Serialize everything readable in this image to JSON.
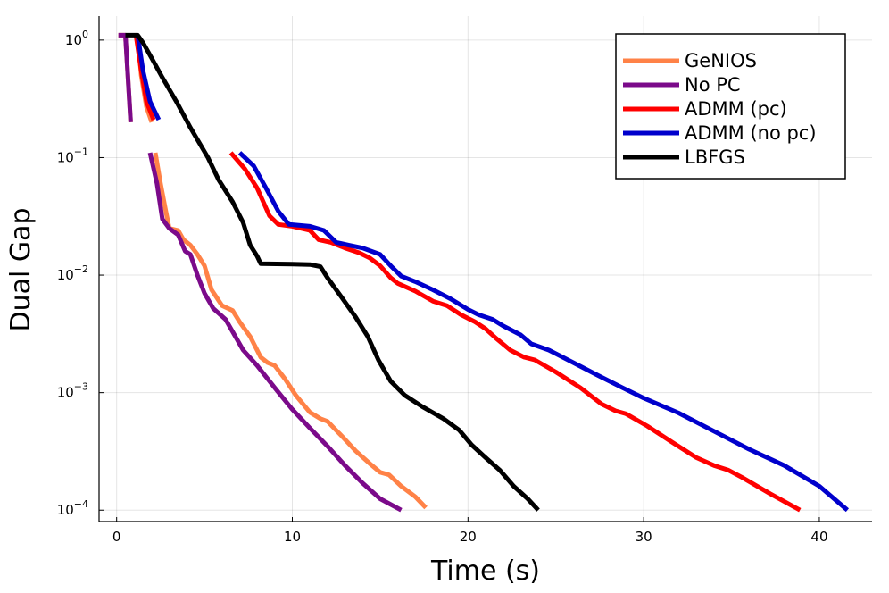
{
  "chart_data": {
    "type": "line",
    "title": "",
    "xlabel": "Time (s)",
    "ylabel": "Dual Gap",
    "yscale": "log",
    "xlim": [
      -1,
      43
    ],
    "ylim": [
      8e-05,
      1.6
    ],
    "x_ticks": [
      {
        "value": 0,
        "label": "0"
      },
      {
        "value": 10,
        "label": "10"
      },
      {
        "value": 20,
        "label": "20"
      },
      {
        "value": 30,
        "label": "30"
      },
      {
        "value": 40,
        "label": "40"
      }
    ],
    "y_ticks": [
      {
        "value": 1,
        "base": "10",
        "exp": "0"
      },
      {
        "value": 0.1,
        "base": "10",
        "exp": "−1"
      },
      {
        "value": 0.01,
        "base": "10",
        "exp": "−2"
      },
      {
        "value": 0.001,
        "base": "10",
        "exp": "−3"
      },
      {
        "value": 0.0001,
        "base": "10",
        "exp": "−4"
      }
    ],
    "grid": true,
    "legend_position": "top-right",
    "series": [
      {
        "name": "GeNIOS",
        "color": "#ff8247",
        "segments": [
          [
            [
              0.1,
              1.1
            ],
            [
              0.5,
              1.1
            ],
            [
              0.8,
              0.2
            ]
          ],
          [
            [
              1.2,
              1.1
            ],
            [
              1.4,
              0.5
            ],
            [
              1.7,
              0.27
            ],
            [
              2.0,
              0.2
            ]
          ],
          [
            [
              2.2,
              0.11
            ],
            [
              2.5,
              0.06
            ],
            [
              2.8,
              0.035
            ],
            [
              3.0,
              0.025
            ],
            [
              3.5,
              0.024
            ],
            [
              3.8,
              0.02
            ],
            [
              4.2,
              0.018
            ],
            [
              4.6,
              0.015
            ],
            [
              5.0,
              0.012
            ],
            [
              5.4,
              0.0075
            ],
            [
              6.0,
              0.0055
            ],
            [
              6.6,
              0.005
            ],
            [
              7.0,
              0.004
            ],
            [
              7.6,
              0.003
            ],
            [
              8.2,
              0.002
            ],
            [
              8.6,
              0.0018
            ],
            [
              9.0,
              0.0017
            ],
            [
              9.6,
              0.0013
            ],
            [
              10.2,
              0.00095
            ],
            [
              11.0,
              0.00068
            ],
            [
              11.6,
              0.0006
            ],
            [
              12.0,
              0.00057
            ],
            [
              12.8,
              0.00043
            ],
            [
              13.6,
              0.00032
            ],
            [
              14.4,
              0.00025
            ],
            [
              15.0,
              0.00021
            ],
            [
              15.5,
              0.0002
            ],
            [
              16.2,
              0.00016
            ],
            [
              17.0,
              0.00013
            ],
            [
              17.6,
              0.000105
            ]
          ]
        ]
      },
      {
        "name": "No PC",
        "color": "#7b0a8a",
        "segments": [
          [
            [
              0.1,
              1.1
            ],
            [
              0.5,
              1.1
            ],
            [
              0.8,
              0.2
            ]
          ],
          [
            [
              1.9,
              0.11
            ],
            [
              2.3,
              0.06
            ],
            [
              2.6,
              0.03
            ],
            [
              3.0,
              0.025
            ],
            [
              3.5,
              0.022
            ],
            [
              3.9,
              0.016
            ],
            [
              4.2,
              0.015
            ],
            [
              4.6,
              0.01
            ],
            [
              5.0,
              0.007
            ],
            [
              5.5,
              0.0052
            ],
            [
              6.2,
              0.0042
            ],
            [
              6.6,
              0.0033
            ],
            [
              7.2,
              0.0023
            ],
            [
              8.0,
              0.0017
            ],
            [
              9.0,
              0.0011
            ],
            [
              10.0,
              0.00072
            ],
            [
              11.0,
              0.0005
            ],
            [
              12.0,
              0.00035
            ],
            [
              13.0,
              0.00024
            ],
            [
              14.0,
              0.00017
            ],
            [
              15.0,
              0.000125
            ],
            [
              16.2,
              0.0001
            ]
          ]
        ]
      },
      {
        "name": "ADMM (pc)",
        "color": "#ff0000",
        "segments": [
          [
            [
              1.1,
              1.1
            ],
            [
              1.4,
              0.55
            ],
            [
              1.7,
              0.3
            ],
            [
              2.1,
              0.21
            ]
          ],
          [
            [
              6.5,
              0.11
            ],
            [
              7.3,
              0.08
            ],
            [
              8.0,
              0.055
            ],
            [
              8.7,
              0.032
            ],
            [
              9.2,
              0.027
            ],
            [
              10.0,
              0.026
            ],
            [
              11.0,
              0.024
            ],
            [
              11.5,
              0.02
            ],
            [
              12.2,
              0.019
            ],
            [
              13.0,
              0.017
            ],
            [
              13.8,
              0.0155
            ],
            [
              14.4,
              0.014
            ],
            [
              15.0,
              0.012
            ],
            [
              15.6,
              0.0095
            ],
            [
              16.0,
              0.0085
            ],
            [
              17.0,
              0.0073
            ],
            [
              18.0,
              0.006
            ],
            [
              18.8,
              0.0055
            ],
            [
              19.6,
              0.0046
            ],
            [
              20.4,
              0.004
            ],
            [
              21.0,
              0.0035
            ],
            [
              21.6,
              0.0029
            ],
            [
              22.4,
              0.0023
            ],
            [
              23.2,
              0.002
            ],
            [
              23.8,
              0.0019
            ],
            [
              25.0,
              0.0015
            ],
            [
              26.4,
              0.0011
            ],
            [
              27.6,
              0.0008
            ],
            [
              28.4,
              0.0007
            ],
            [
              29.0,
              0.00066
            ],
            [
              30.2,
              0.00052
            ],
            [
              31.6,
              0.00038
            ],
            [
              33.0,
              0.00028
            ],
            [
              34.0,
              0.00024
            ],
            [
              34.8,
              0.00022
            ],
            [
              35.6,
              0.00019
            ],
            [
              37.2,
              0.000138
            ],
            [
              38.9,
              0.0001
            ]
          ]
        ]
      },
      {
        "name": "ADMM (no pc)",
        "color": "#0000cc",
        "segments": [
          [
            [
              1.2,
              1.1
            ],
            [
              1.5,
              0.55
            ],
            [
              1.9,
              0.3
            ],
            [
              2.4,
              0.21
            ]
          ],
          [
            [
              7.0,
              0.11
            ],
            [
              7.8,
              0.085
            ],
            [
              8.5,
              0.055
            ],
            [
              9.2,
              0.035
            ],
            [
              9.8,
              0.027
            ],
            [
              11.0,
              0.026
            ],
            [
              11.8,
              0.024
            ],
            [
              12.5,
              0.019
            ],
            [
              13.2,
              0.018
            ],
            [
              14.0,
              0.017
            ],
            [
              15.0,
              0.015
            ],
            [
              15.6,
              0.012
            ],
            [
              16.2,
              0.0098
            ],
            [
              17.0,
              0.0088
            ],
            [
              18.0,
              0.0075
            ],
            [
              19.0,
              0.0063
            ],
            [
              20.0,
              0.0051
            ],
            [
              20.6,
              0.0046
            ],
            [
              21.4,
              0.0042
            ],
            [
              22.0,
              0.0037
            ],
            [
              23.0,
              0.0031
            ],
            [
              23.6,
              0.0026
            ],
            [
              24.6,
              0.0023
            ],
            [
              26.0,
              0.0018
            ],
            [
              27.4,
              0.0014
            ],
            [
              28.8,
              0.0011
            ],
            [
              30.0,
              0.0009
            ],
            [
              32.0,
              0.00067
            ],
            [
              34.0,
              0.00047
            ],
            [
              36.0,
              0.00033
            ],
            [
              38.0,
              0.00024
            ],
            [
              40.0,
              0.00016
            ],
            [
              41.6,
              0.0001
            ]
          ]
        ]
      },
      {
        "name": "LBFGS",
        "color": "#000000",
        "segments": [
          [
            [
              0.5,
              1.1
            ],
            [
              1.2,
              1.1
            ],
            [
              1.5,
              0.95
            ],
            [
              2.0,
              0.7
            ],
            [
              2.6,
              0.48
            ],
            [
              3.4,
              0.3
            ],
            [
              4.2,
              0.18
            ],
            [
              5.2,
              0.1
            ],
            [
              5.8,
              0.065
            ],
            [
              6.6,
              0.042
            ],
            [
              7.2,
              0.028
            ],
            [
              7.6,
              0.018
            ],
            [
              8.0,
              0.0145
            ],
            [
              8.2,
              0.0125
            ],
            [
              10.0,
              0.0124
            ],
            [
              11.0,
              0.0123
            ],
            [
              11.6,
              0.0118
            ],
            [
              12.0,
              0.0095
            ],
            [
              12.8,
              0.0065
            ],
            [
              13.6,
              0.0044
            ],
            [
              14.3,
              0.003
            ],
            [
              14.9,
              0.0019
            ],
            [
              15.6,
              0.00125
            ],
            [
              16.4,
              0.00095
            ],
            [
              17.4,
              0.00076
            ],
            [
              18.6,
              0.0006
            ],
            [
              19.5,
              0.00048
            ],
            [
              20.2,
              0.00036
            ],
            [
              21.0,
              0.00028
            ],
            [
              21.8,
              0.00022
            ],
            [
              22.6,
              0.00016
            ],
            [
              23.4,
              0.000125
            ],
            [
              24.0,
              0.0001
            ]
          ]
        ]
      }
    ]
  }
}
